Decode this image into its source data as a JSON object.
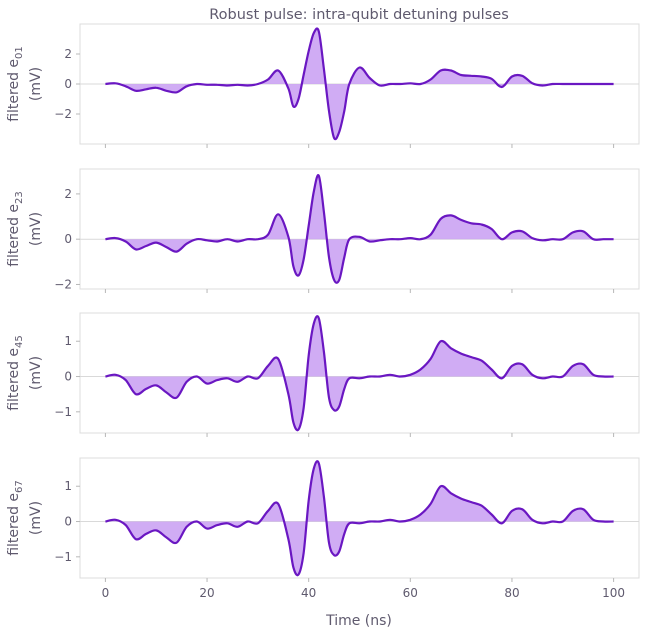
{
  "chart_data": [
    {
      "type": "area",
      "title": "Robust pulse: intra-qubit detuning pulses",
      "ylabel": {
        "prefix": "filtered e",
        "subscript": "01",
        "unit": "(mV)"
      },
      "xlim": [
        -5,
        105
      ],
      "ylim": [
        -4.0,
        4.0
      ],
      "yticks": [
        {
          "value": -2,
          "label": "−2"
        },
        {
          "value": 0,
          "label": "0"
        },
        {
          "value": 2,
          "label": "2"
        }
      ],
      "x": [
        0,
        2,
        4,
        6,
        8,
        10,
        12,
        14,
        16,
        18,
        20,
        22,
        24,
        26,
        28,
        30,
        32,
        34,
        36,
        37,
        38,
        39,
        40,
        41,
        42,
        43,
        44,
        45,
        46,
        47,
        48,
        50,
        52,
        54,
        56,
        58,
        60,
        62,
        64,
        66,
        68,
        70,
        72,
        74,
        76,
        78,
        80,
        82,
        84,
        86,
        88,
        90,
        92,
        94,
        96,
        98,
        100
      ],
      "values": [
        0.0,
        0.05,
        -0.15,
        -0.45,
        -0.35,
        -0.25,
        -0.45,
        -0.55,
        -0.15,
        0.0,
        -0.05,
        -0.05,
        -0.1,
        -0.05,
        -0.1,
        0.0,
        0.3,
        0.9,
        -0.3,
        -1.5,
        -1.0,
        0.6,
        2.2,
        3.4,
        3.5,
        1.0,
        -1.8,
        -3.6,
        -3.2,
        -1.8,
        0.0,
        1.1,
        0.4,
        -0.1,
        0.0,
        0.0,
        0.05,
        0.0,
        0.3,
        0.9,
        0.9,
        0.6,
        0.55,
        0.5,
        0.35,
        -0.2,
        0.5,
        0.55,
        0.05,
        -0.1,
        0.0,
        0.0,
        0.0,
        0.0,
        0.0,
        0.0,
        0.0
      ]
    },
    {
      "type": "area",
      "ylabel": {
        "prefix": "filtered e",
        "subscript": "23",
        "unit": "(mV)"
      },
      "xlim": [
        -5,
        105
      ],
      "ylim": [
        -2.2,
        3.1
      ],
      "yticks": [
        {
          "value": -2,
          "label": "−2"
        },
        {
          "value": 0,
          "label": "0"
        },
        {
          "value": 2,
          "label": "2"
        }
      ],
      "x": [
        0,
        2,
        4,
        6,
        8,
        10,
        12,
        14,
        16,
        18,
        20,
        22,
        24,
        26,
        28,
        30,
        32,
        34,
        36,
        37,
        38,
        39,
        40,
        41,
        42,
        43,
        44,
        45,
        46,
        47,
        48,
        50,
        52,
        54,
        56,
        58,
        60,
        62,
        64,
        66,
        68,
        70,
        72,
        74,
        76,
        78,
        80,
        82,
        84,
        86,
        88,
        90,
        92,
        94,
        96,
        98,
        100
      ],
      "values": [
        0.0,
        0.05,
        -0.1,
        -0.45,
        -0.3,
        -0.15,
        -0.35,
        -0.55,
        -0.2,
        0.0,
        -0.05,
        -0.1,
        0.0,
        -0.1,
        0.0,
        0.0,
        0.2,
        1.1,
        0.1,
        -1.2,
        -1.6,
        -0.9,
        0.6,
        2.1,
        2.8,
        1.2,
        -0.8,
        -1.8,
        -1.8,
        -0.8,
        0.0,
        0.1,
        -0.1,
        -0.05,
        0.0,
        0.0,
        0.05,
        0.0,
        0.2,
        0.9,
        1.05,
        0.85,
        0.7,
        0.65,
        0.45,
        0.0,
        0.3,
        0.35,
        0.05,
        -0.05,
        0.0,
        0.0,
        0.3,
        0.35,
        0.0,
        0.0,
        0.0
      ]
    },
    {
      "type": "area",
      "ylabel": {
        "prefix": "filtered e",
        "subscript": "45",
        "unit": "(mV)"
      },
      "xlim": [
        -5,
        105
      ],
      "ylim": [
        -1.6,
        1.8
      ],
      "yticks": [
        {
          "value": -1,
          "label": "−1"
        },
        {
          "value": 0,
          "label": "0"
        },
        {
          "value": 1,
          "label": "1"
        }
      ],
      "x": [
        0,
        2,
        4,
        6,
        8,
        10,
        12,
        14,
        16,
        18,
        20,
        22,
        24,
        26,
        28,
        30,
        32,
        34,
        36,
        37,
        38,
        39,
        40,
        41,
        42,
        43,
        44,
        45,
        46,
        47,
        48,
        50,
        52,
        54,
        56,
        58,
        60,
        62,
        64,
        66,
        68,
        70,
        72,
        74,
        76,
        78,
        80,
        82,
        84,
        86,
        88,
        90,
        92,
        94,
        96,
        98,
        100
      ],
      "values": [
        0.0,
        0.05,
        -0.1,
        -0.5,
        -0.35,
        -0.25,
        -0.45,
        -0.6,
        -0.15,
        0.0,
        -0.2,
        -0.1,
        -0.05,
        -0.15,
        0.0,
        -0.05,
        0.3,
        0.5,
        -0.5,
        -1.3,
        -1.5,
        -0.9,
        0.6,
        1.5,
        1.65,
        0.7,
        -0.6,
        -0.95,
        -0.85,
        -0.35,
        -0.05,
        -0.05,
        0.0,
        0.0,
        0.05,
        0.0,
        0.05,
        0.2,
        0.5,
        1.0,
        0.8,
        0.65,
        0.55,
        0.45,
        0.2,
        -0.05,
        0.3,
        0.35,
        0.05,
        -0.05,
        0.0,
        0.0,
        0.3,
        0.35,
        0.05,
        0.0,
        0.0
      ]
    },
    {
      "type": "area",
      "ylabel": {
        "prefix": "filtered e",
        "subscript": "67",
        "unit": "(mV)"
      },
      "xlim": [
        -5,
        105
      ],
      "ylim": [
        -1.6,
        1.8
      ],
      "yticks": [
        {
          "value": -1,
          "label": "−1"
        },
        {
          "value": 0,
          "label": "0"
        },
        {
          "value": 1,
          "label": "1"
        }
      ],
      "xticks": [
        {
          "value": 0,
          "label": "0"
        },
        {
          "value": 20,
          "label": "20"
        },
        {
          "value": 40,
          "label": "40"
        },
        {
          "value": 60,
          "label": "60"
        },
        {
          "value": 80,
          "label": "80"
        },
        {
          "value": 100,
          "label": "100"
        }
      ],
      "xlabel": "Time (ns)",
      "x": [
        0,
        2,
        4,
        6,
        8,
        10,
        12,
        14,
        16,
        18,
        20,
        22,
        24,
        26,
        28,
        30,
        32,
        34,
        36,
        37,
        38,
        39,
        40,
        41,
        42,
        43,
        44,
        45,
        46,
        47,
        48,
        50,
        52,
        54,
        56,
        58,
        60,
        62,
        64,
        66,
        68,
        70,
        72,
        74,
        76,
        78,
        80,
        82,
        84,
        86,
        88,
        90,
        92,
        94,
        96,
        98,
        100
      ],
      "values": [
        0.0,
        0.05,
        -0.1,
        -0.5,
        -0.35,
        -0.25,
        -0.45,
        -0.6,
        -0.15,
        0.0,
        -0.2,
        -0.1,
        -0.05,
        -0.15,
        0.0,
        -0.05,
        0.3,
        0.5,
        -0.5,
        -1.3,
        -1.5,
        -0.9,
        0.6,
        1.5,
        1.65,
        0.7,
        -0.6,
        -0.95,
        -0.85,
        -0.35,
        -0.05,
        -0.05,
        0.0,
        0.0,
        0.05,
        0.0,
        0.05,
        0.2,
        0.5,
        1.0,
        0.8,
        0.65,
        0.55,
        0.45,
        0.2,
        -0.05,
        0.3,
        0.35,
        0.05,
        -0.05,
        0.0,
        0.0,
        0.3,
        0.35,
        0.05,
        0.0,
        0.0
      ]
    }
  ],
  "style": {
    "line_color": "#6a17c2",
    "fill_color": "#c89df2",
    "text_color": "#5f5a6e",
    "grid": false
  }
}
